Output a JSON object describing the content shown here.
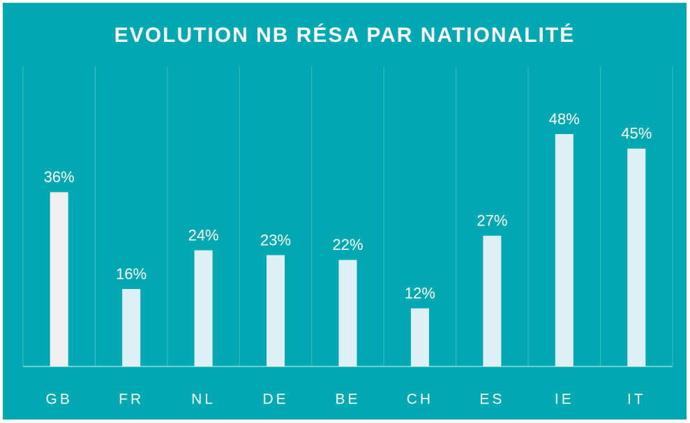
{
  "chart_data": {
    "type": "bar",
    "title": "EVOLUTION  NB RÉSA PAR NATIONALITÉ",
    "categories": [
      "GB",
      "FR",
      "NL",
      "DE",
      "BE",
      "CH",
      "ES",
      "IE",
      "IT"
    ],
    "values": [
      36,
      16,
      24,
      23,
      22,
      12,
      27,
      48,
      45
    ],
    "value_labels": [
      "36%",
      "16%",
      "24%",
      "23%",
      "22%",
      "12%",
      "27%",
      "48%",
      "45%"
    ],
    "colors": [
      "#efefef",
      "#dff0f5",
      "#dff0f5",
      "#dff0f5",
      "#dff0f5",
      "#dff0f5",
      "#dff0f5",
      "#dff0f5",
      "#dff0f5"
    ],
    "background": "#00a9b1",
    "ylim": [
      0,
      62
    ]
  }
}
